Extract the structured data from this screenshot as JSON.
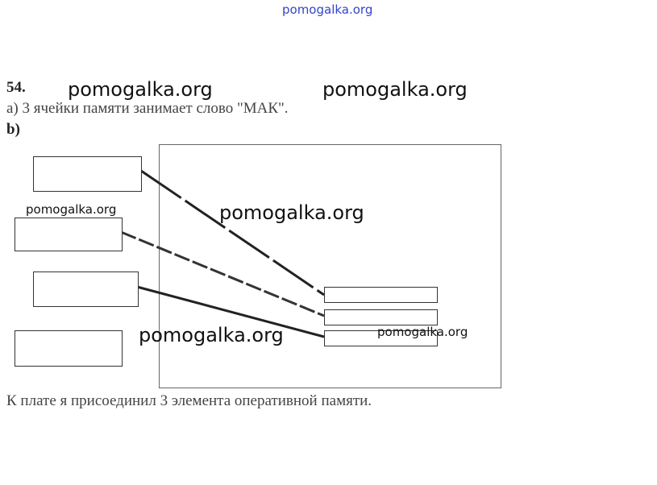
{
  "header": {
    "site": "pomogalka.org"
  },
  "task": {
    "number": "54.",
    "part_a": "a) 3 ячейки памяти занимает слово \"МАК\".",
    "part_b": "b)",
    "conclusion": "К плате я присоединил 3 элемента оперативной памяти."
  },
  "watermarks": [
    "pomogalka.org",
    "pomogalka.org",
    "pomogalka.org",
    "pomogalka.org",
    "pomogalka.org",
    "pomogalka.org"
  ]
}
